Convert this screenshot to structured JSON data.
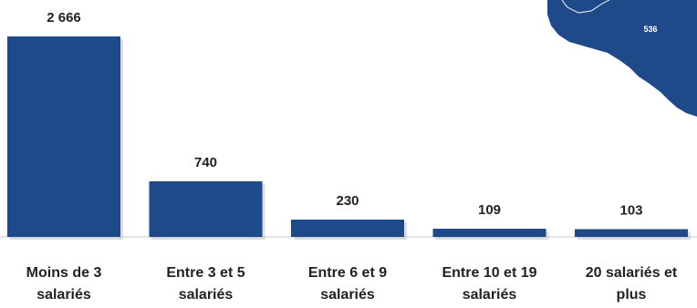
{
  "chart_data": {
    "type": "bar",
    "categories": [
      [
        "Moins de 3",
        "salariés"
      ],
      [
        "Entre 3 et 5",
        "salariés"
      ],
      [
        "Entre 6 et 9",
        "salariés"
      ],
      [
        "Entre 10 et 19",
        "salariés"
      ],
      [
        "20 salariés et",
        "plus"
      ]
    ],
    "values": [
      2666,
      740,
      230,
      109,
      103
    ],
    "value_labels": [
      "2 666",
      "740",
      "230",
      "109",
      "103"
    ],
    "ylim": [
      0,
      2666
    ],
    "grid": false,
    "colors": {
      "bar": "#1f4a8a",
      "text": "#222222",
      "map_fill": "#1f4a8a"
    }
  },
  "map_inset": {
    "label": "536"
  }
}
